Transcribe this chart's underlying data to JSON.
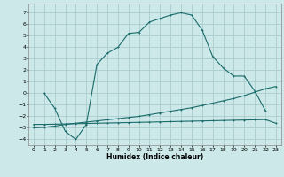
{
  "title": "",
  "xlabel": "Humidex (Indice chaleur)",
  "bg_color": "#cce8e8",
  "grid_color": "#aacccc",
  "line_color": "#1a6b6b",
  "xlim": [
    -0.5,
    23.5
  ],
  "ylim": [
    -4.5,
    7.8
  ],
  "yticks": [
    -4,
    -3,
    -2,
    -1,
    0,
    1,
    2,
    3,
    4,
    5,
    6,
    7
  ],
  "xticks": [
    0,
    1,
    2,
    3,
    4,
    5,
    6,
    7,
    8,
    9,
    10,
    11,
    12,
    13,
    14,
    15,
    16,
    17,
    18,
    19,
    20,
    21,
    22,
    23
  ],
  "curve1_x": [
    1,
    2,
    3,
    4,
    5,
    6,
    7,
    8,
    9,
    10,
    11,
    12,
    13,
    14,
    15,
    16,
    17,
    18,
    19,
    20,
    21,
    22
  ],
  "curve1_y": [
    0.0,
    -1.3,
    -3.3,
    -4.0,
    -2.7,
    2.5,
    3.5,
    4.0,
    5.2,
    5.3,
    6.2,
    6.5,
    6.8,
    7.0,
    6.8,
    5.5,
    3.2,
    2.2,
    1.5,
    1.5,
    0.2,
    -1.5
  ],
  "curve2_x": [
    0,
    1,
    2,
    3,
    4,
    5,
    6,
    7,
    8,
    9,
    10,
    11,
    12,
    13,
    14,
    15,
    16,
    17,
    18,
    19,
    20,
    21,
    22,
    23
  ],
  "curve2_y": [
    -3.0,
    -2.95,
    -2.85,
    -2.7,
    -2.6,
    -2.5,
    -2.4,
    -2.3,
    -2.2,
    -2.1,
    -2.0,
    -1.85,
    -1.7,
    -1.55,
    -1.4,
    -1.25,
    -1.05,
    -0.85,
    -0.65,
    -0.45,
    -0.2,
    0.1,
    0.4,
    0.6
  ],
  "curve3_x": [
    0,
    1,
    2,
    3,
    4,
    5,
    6,
    7,
    8,
    9,
    10,
    11,
    12,
    13,
    14,
    15,
    16,
    17,
    18,
    19,
    20,
    21,
    22,
    23
  ],
  "curve3_y": [
    -2.7,
    -2.7,
    -2.68,
    -2.66,
    -2.64,
    -2.62,
    -2.6,
    -2.58,
    -2.56,
    -2.54,
    -2.52,
    -2.5,
    -2.48,
    -2.46,
    -2.44,
    -2.42,
    -2.4,
    -2.38,
    -2.36,
    -2.34,
    -2.32,
    -2.3,
    -2.28,
    -2.6
  ]
}
